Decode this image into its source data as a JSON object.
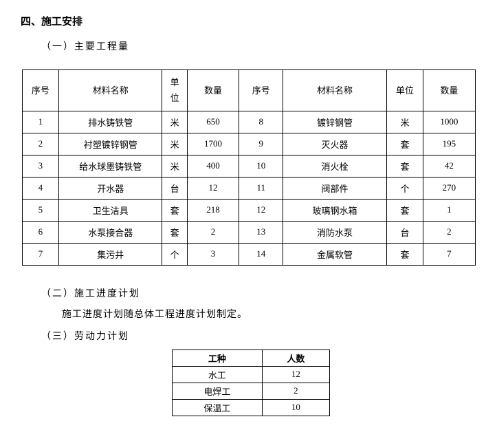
{
  "section_title": "四、施工安排",
  "sub1_title": "（一）主要工程量",
  "sub2_title": "（二）施工进度计划",
  "sub2_text": "施工进度计划随总体工程进度计划制定。",
  "sub3_title": "（三）劳动力计划",
  "main_table": {
    "headers": [
      "序号",
      "材料名称",
      "单\n位",
      "数量",
      "序号",
      "材料名称",
      "单位",
      "数量"
    ],
    "col_widths": [
      "50px",
      "140px",
      "34px",
      "70px",
      "60px",
      "140px",
      "50px",
      "70px"
    ],
    "rows": [
      [
        "1",
        "排水铸铁管",
        "米",
        "650",
        "8",
        "镀锌钢管",
        "米",
        "1000"
      ],
      [
        "2",
        "衬塑镀锌钢管",
        "米",
        "1700",
        "9",
        "灭火器",
        "套",
        "195"
      ],
      [
        "3",
        "给水球墨铸铁管",
        "米",
        "400",
        "10",
        "消火栓",
        "套",
        "42"
      ],
      [
        "4",
        "开水器",
        "台",
        "12",
        "11",
        "阀部件",
        "个",
        "270"
      ],
      [
        "5",
        "卫生洁具",
        "套",
        "218",
        "12",
        "玻璃钢水箱",
        "套",
        "1"
      ],
      [
        "6",
        "水泵接合器",
        "套",
        "2",
        "13",
        "消防水泵",
        "台",
        "2"
      ],
      [
        "7",
        "集污井",
        "个",
        "3",
        "14",
        "金属软管",
        "套",
        "7"
      ]
    ]
  },
  "labor_table": {
    "headers": [
      "工种",
      "人数"
    ],
    "rows": [
      [
        "水工",
        "12"
      ],
      [
        "电焊工",
        "2"
      ],
      [
        "保温工",
        "10"
      ]
    ]
  }
}
